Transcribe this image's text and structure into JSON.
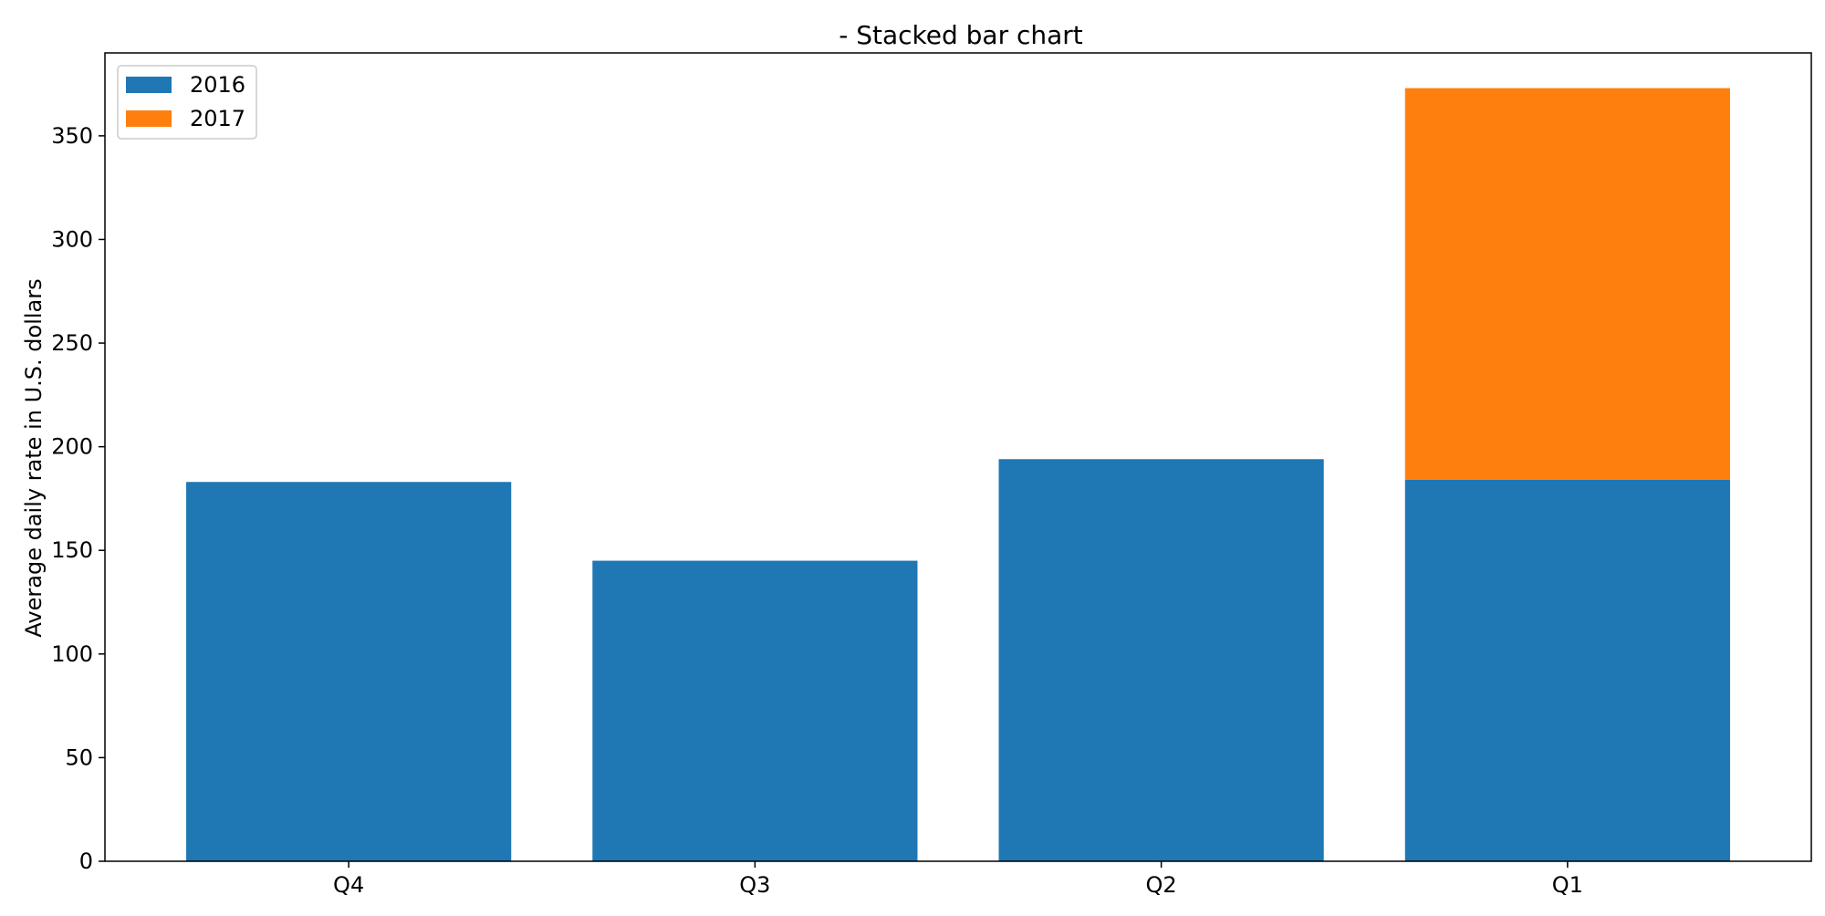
{
  "chart_data": {
    "type": "bar",
    "stacked": true,
    "title": "- Stacked bar chart",
    "xlabel": "",
    "ylabel": "Average daily rate in U.S. dollars",
    "categories": [
      "Q4",
      "Q3",
      "Q2",
      "Q1"
    ],
    "series": [
      {
        "name": "2016",
        "values": [
          183,
          145,
          194,
          184
        ],
        "color": "#1f77b4"
      },
      {
        "name": "2017",
        "values": [
          0,
          0,
          0,
          189
        ],
        "color": "#ff7f0e"
      }
    ],
    "ylim": [
      0,
      390
    ],
    "yticks": [
      0,
      50,
      100,
      150,
      200,
      250,
      300,
      350
    ],
    "grid": false,
    "legend_position": "top-left"
  }
}
